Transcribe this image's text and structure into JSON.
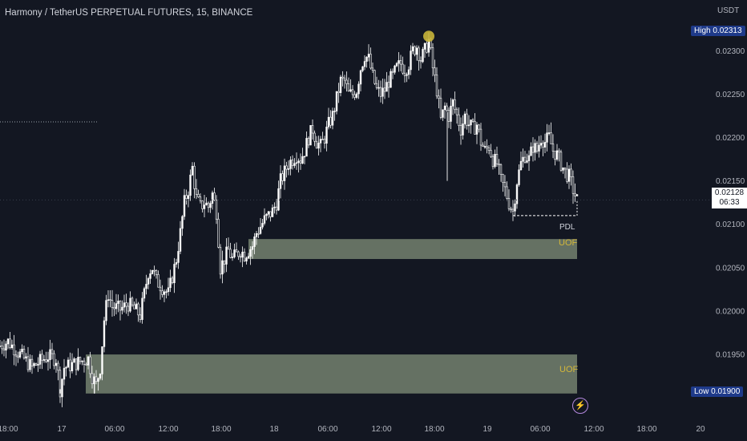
{
  "header": {
    "title": "Harmony / TetherUS PERPETUAL FUTURES, 15, BINANCE"
  },
  "price_axis": {
    "currency": "USDT",
    "high_label": "High",
    "high_value": "0.02313",
    "low_label": "Low",
    "low_value": "0.01900",
    "last_price": "0.02128",
    "countdown": "06:33"
  },
  "annotations": {
    "pdl_label": "PDL",
    "zone_upper_label": "UOF",
    "zone_lower_label": "UOF"
  },
  "colors": {
    "background": "#131722",
    "candle": "#ffffff",
    "zone": "#74816f",
    "high_marker": "#c9b53a",
    "zone_label": "#d4b73a",
    "badge": "#1e3a8a"
  },
  "icons": {
    "alert": "lightning-icon"
  },
  "chart_data": {
    "type": "candlestick",
    "title": "Harmony / TetherUS PERPETUAL FUTURES, 15, BINANCE",
    "xlabel": "",
    "ylabel": "",
    "y_ticks": [
      "0.02300",
      "0.02250",
      "0.02200",
      "0.02150",
      "0.02100",
      "0.02050",
      "0.02000",
      "0.01950"
    ],
    "x_ticks": [
      "18:00",
      "17",
      "06:00",
      "12:00",
      "18:00",
      "18",
      "06:00",
      "12:00",
      "18:00",
      "19",
      "06:00",
      "12:00",
      "18:00",
      "20"
    ],
    "ylim": [
      0.01878,
      0.0234
    ],
    "path_points": [
      [
        0,
        0.0196
      ],
      [
        10,
        0.01965
      ],
      [
        20,
        0.01955
      ],
      [
        30,
        0.01945
      ],
      [
        40,
        0.01935
      ],
      [
        50,
        0.01942
      ],
      [
        60,
        0.01948
      ],
      [
        70,
        0.01945
      ],
      [
        75,
        0.0191
      ],
      [
        80,
        0.01935
      ],
      [
        90,
        0.01938
      ],
      [
        100,
        0.01942
      ],
      [
        110,
        0.01945
      ],
      [
        115,
        0.01925
      ],
      [
        120,
        0.01915
      ],
      [
        125,
        0.01935
      ],
      [
        130,
        0.0199
      ],
      [
        135,
        0.0202
      ],
      [
        140,
        0.02005
      ],
      [
        150,
        0.02002
      ],
      [
        160,
        0.02008
      ],
      [
        170,
        0.02
      ],
      [
        175,
        0.01995
      ],
      [
        180,
        0.0202
      ],
      [
        185,
        0.02045
      ],
      [
        190,
        0.0205
      ],
      [
        195,
        0.02035
      ],
      [
        200,
        0.0203
      ],
      [
        205,
        0.02025
      ],
      [
        210,
        0.0202
      ],
      [
        215,
        0.0204
      ],
      [
        220,
        0.0206
      ],
      [
        225,
        0.0209
      ],
      [
        230,
        0.02125
      ],
      [
        235,
        0.0214
      ],
      [
        240,
        0.02165
      ],
      [
        245,
        0.0213
      ],
      [
        250,
        0.0212
      ],
      [
        255,
        0.02125
      ],
      [
        260,
        0.0212
      ],
      [
        265,
        0.02135
      ],
      [
        270,
        0.02115
      ],
      [
        275,
        0.0205
      ],
      [
        280,
        0.0206
      ],
      [
        285,
        0.0207
      ],
      [
        290,
        0.0206
      ],
      [
        295,
        0.02065
      ],
      [
        300,
        0.0207
      ],
      [
        305,
        0.02065
      ],
      [
        310,
        0.0207
      ],
      [
        315,
        0.02075
      ],
      [
        320,
        0.0209
      ],
      [
        330,
        0.02105
      ],
      [
        340,
        0.02115
      ],
      [
        345,
        0.02125
      ],
      [
        350,
        0.0215
      ],
      [
        360,
        0.0217
      ],
      [
        370,
        0.0218
      ],
      [
        375,
        0.02175
      ],
      [
        380,
        0.02185
      ],
      [
        385,
        0.022
      ],
      [
        390,
        0.0221
      ],
      [
        395,
        0.02195
      ],
      [
        400,
        0.0219
      ],
      [
        405,
        0.022
      ],
      [
        410,
        0.02215
      ],
      [
        415,
        0.02225
      ],
      [
        420,
        0.02245
      ],
      [
        425,
        0.02265
      ],
      [
        430,
        0.02265
      ],
      [
        435,
        0.0225
      ],
      [
        440,
        0.0225
      ],
      [
        445,
        0.02255
      ],
      [
        450,
        0.0228
      ],
      [
        455,
        0.02295
      ],
      [
        460,
        0.0229
      ],
      [
        465,
        0.0227
      ],
      [
        470,
        0.02255
      ],
      [
        475,
        0.0225
      ],
      [
        480,
        0.02255
      ],
      [
        485,
        0.02265
      ],
      [
        490,
        0.0227
      ],
      [
        495,
        0.0228
      ],
      [
        500,
        0.02285
      ],
      [
        505,
        0.02278
      ],
      [
        510,
        0.02285
      ],
      [
        515,
        0.023
      ],
      [
        520,
        0.02305
      ],
      [
        525,
        0.0229
      ],
      [
        530,
        0.023
      ],
      [
        535,
        0.02312
      ],
      [
        540,
        0.0228
      ],
      [
        545,
        0.02255
      ],
      [
        550,
        0.0222
      ],
      [
        555,
        0.02235
      ],
      [
        560,
        0.02225
      ],
      [
        565,
        0.0224
      ],
      [
        570,
        0.02225
      ],
      [
        575,
        0.0221
      ],
      [
        580,
        0.02225
      ],
      [
        585,
        0.02215
      ],
      [
        590,
        0.0221
      ],
      [
        595,
        0.02215
      ],
      [
        600,
        0.02195
      ],
      [
        605,
        0.02185
      ],
      [
        610,
        0.0219
      ],
      [
        615,
        0.02175
      ],
      [
        620,
        0.0217
      ],
      [
        625,
        0.0215
      ],
      [
        630,
        0.0214
      ],
      [
        635,
        0.02125
      ],
      [
        640,
        0.02115
      ],
      [
        645,
        0.0215
      ],
      [
        650,
        0.0217
      ],
      [
        655,
        0.0218
      ],
      [
        660,
        0.02175
      ],
      [
        665,
        0.0219
      ],
      [
        670,
        0.02185
      ],
      [
        675,
        0.022
      ],
      [
        680,
        0.02195
      ],
      [
        685,
        0.022
      ],
      [
        690,
        0.02185
      ],
      [
        695,
        0.0218
      ],
      [
        700,
        0.0217
      ],
      [
        705,
        0.0216
      ],
      [
        710,
        0.02155
      ],
      [
        715,
        0.0214
      ],
      [
        720,
        0.02128
      ]
    ],
    "spike_points": [
      [
        558,
        0.0215
      ],
      [
        278,
        0.02045
      ],
      [
        118,
        0.01905
      ],
      [
        75,
        0.01905
      ]
    ],
    "high_marker": {
      "x": 535,
      "y": 0.02313
    },
    "pdl": {
      "x_start": 640,
      "x_end": 720,
      "y": 0.0211
    },
    "zones": [
      {
        "label": "UOF",
        "x_start": 310,
        "x_end": 720,
        "y_low": 0.0206,
        "y_high": 0.02083
      },
      {
        "label": "UOF",
        "x_start": 107,
        "x_end": 720,
        "y_low": 0.01905,
        "y_high": 0.0195
      }
    ],
    "reference_line": {
      "x_start": 0,
      "x_end": 122,
      "y": 0.02218
    },
    "grid": false,
    "legend": "none"
  }
}
